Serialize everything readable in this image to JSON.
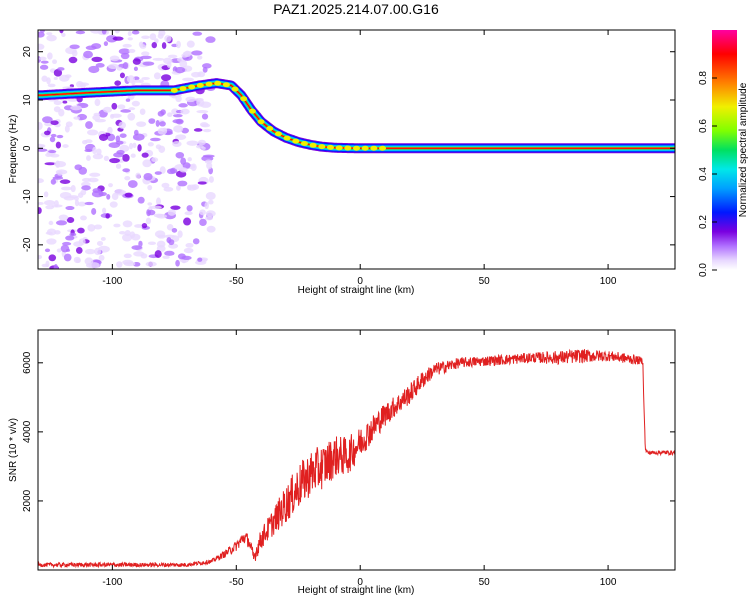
{
  "figure_title": "PAZ1.2025.214.07.00.G16",
  "colors": {
    "signal_line": "#e02020",
    "axis": "#000000",
    "background": "#ffffff"
  },
  "chart_data": [
    {
      "type": "heatmap",
      "xlabel": "Height of straight line (km)",
      "ylabel": "Frequency (Hz)",
      "xlim": [
        -130,
        127
      ],
      "ylim": [
        -25,
        24.5
      ],
      "x_ticks": [
        -100,
        -50,
        0,
        50,
        100
      ],
      "y_ticks": [
        -20,
        -10,
        0,
        10,
        20
      ],
      "colormap": [
        "#e8d8ff",
        "#b070ff",
        "#7a00e0",
        "#0018ff",
        "#00a0ff",
        "#00e8e8",
        "#00e060",
        "#80ff00",
        "#f0f000",
        "#ff8000",
        "#ff0000",
        "#ff00a0"
      ],
      "colorbar": {
        "label": "Normalized spectral amplitude",
        "range": [
          0.0,
          1.0
        ],
        "ticks": [
          0.0,
          0.2,
          0.4,
          0.6,
          0.8
        ]
      },
      "ridge": {
        "x": [
          -128,
          -110,
          -90,
          -75,
          -65,
          -58,
          -52,
          -48,
          -44,
          -40,
          -35,
          -30,
          -25,
          -20,
          -15,
          -10,
          0,
          20,
          50,
          100,
          127
        ],
        "frequency": [
          11,
          11.5,
          12,
          12,
          13,
          13.5,
          13,
          11,
          8,
          5.5,
          3.5,
          2.2,
          1.3,
          0.7,
          0.3,
          0.1,
          0,
          0,
          0,
          0,
          0
        ]
      },
      "noise_region_x": [
        -130,
        -60
      ]
    },
    {
      "type": "line",
      "xlabel": "Height of straight line (km)",
      "ylabel": "SNR (10 * v/v)",
      "xlim": [
        -130,
        127
      ],
      "ylim": [
        0,
        6950
      ],
      "x_ticks": [
        -100,
        -50,
        0,
        50,
        100
      ],
      "y_ticks": [
        2000,
        4000,
        6000
      ],
      "series": [
        {
          "x": [
            -130,
            -100,
            -70,
            -60,
            -55,
            -50,
            -47,
            -45,
            -43,
            -40,
            -35,
            -30,
            -25,
            -20,
            -15,
            -10,
            -5,
            0,
            5,
            10,
            15,
            20,
            25,
            30,
            40,
            50,
            60,
            70,
            80,
            90,
            100,
            110,
            114,
            115,
            116,
            120,
            127
          ],
          "y": [
            150,
            150,
            150,
            250,
            450,
            700,
            950,
            850,
            350,
            900,
            1400,
            1900,
            2400,
            2800,
            3000,
            3300,
            3300,
            3700,
            4100,
            4500,
            4800,
            5100,
            5500,
            5800,
            6000,
            6050,
            6100,
            6150,
            6150,
            6200,
            6200,
            6100,
            6050,
            3500,
            3400,
            3400,
            3400
          ],
          "noise_amplitude": [
            60,
            60,
            60,
            60,
            100,
            150,
            200,
            200,
            200,
            300,
            400,
            550,
            650,
            650,
            650,
            600,
            550,
            450,
            400,
            350,
            300,
            300,
            250,
            200,
            150,
            150,
            150,
            150,
            200,
            200,
            150,
            150,
            100,
            60,
            60,
            60,
            60
          ]
        }
      ]
    }
  ]
}
